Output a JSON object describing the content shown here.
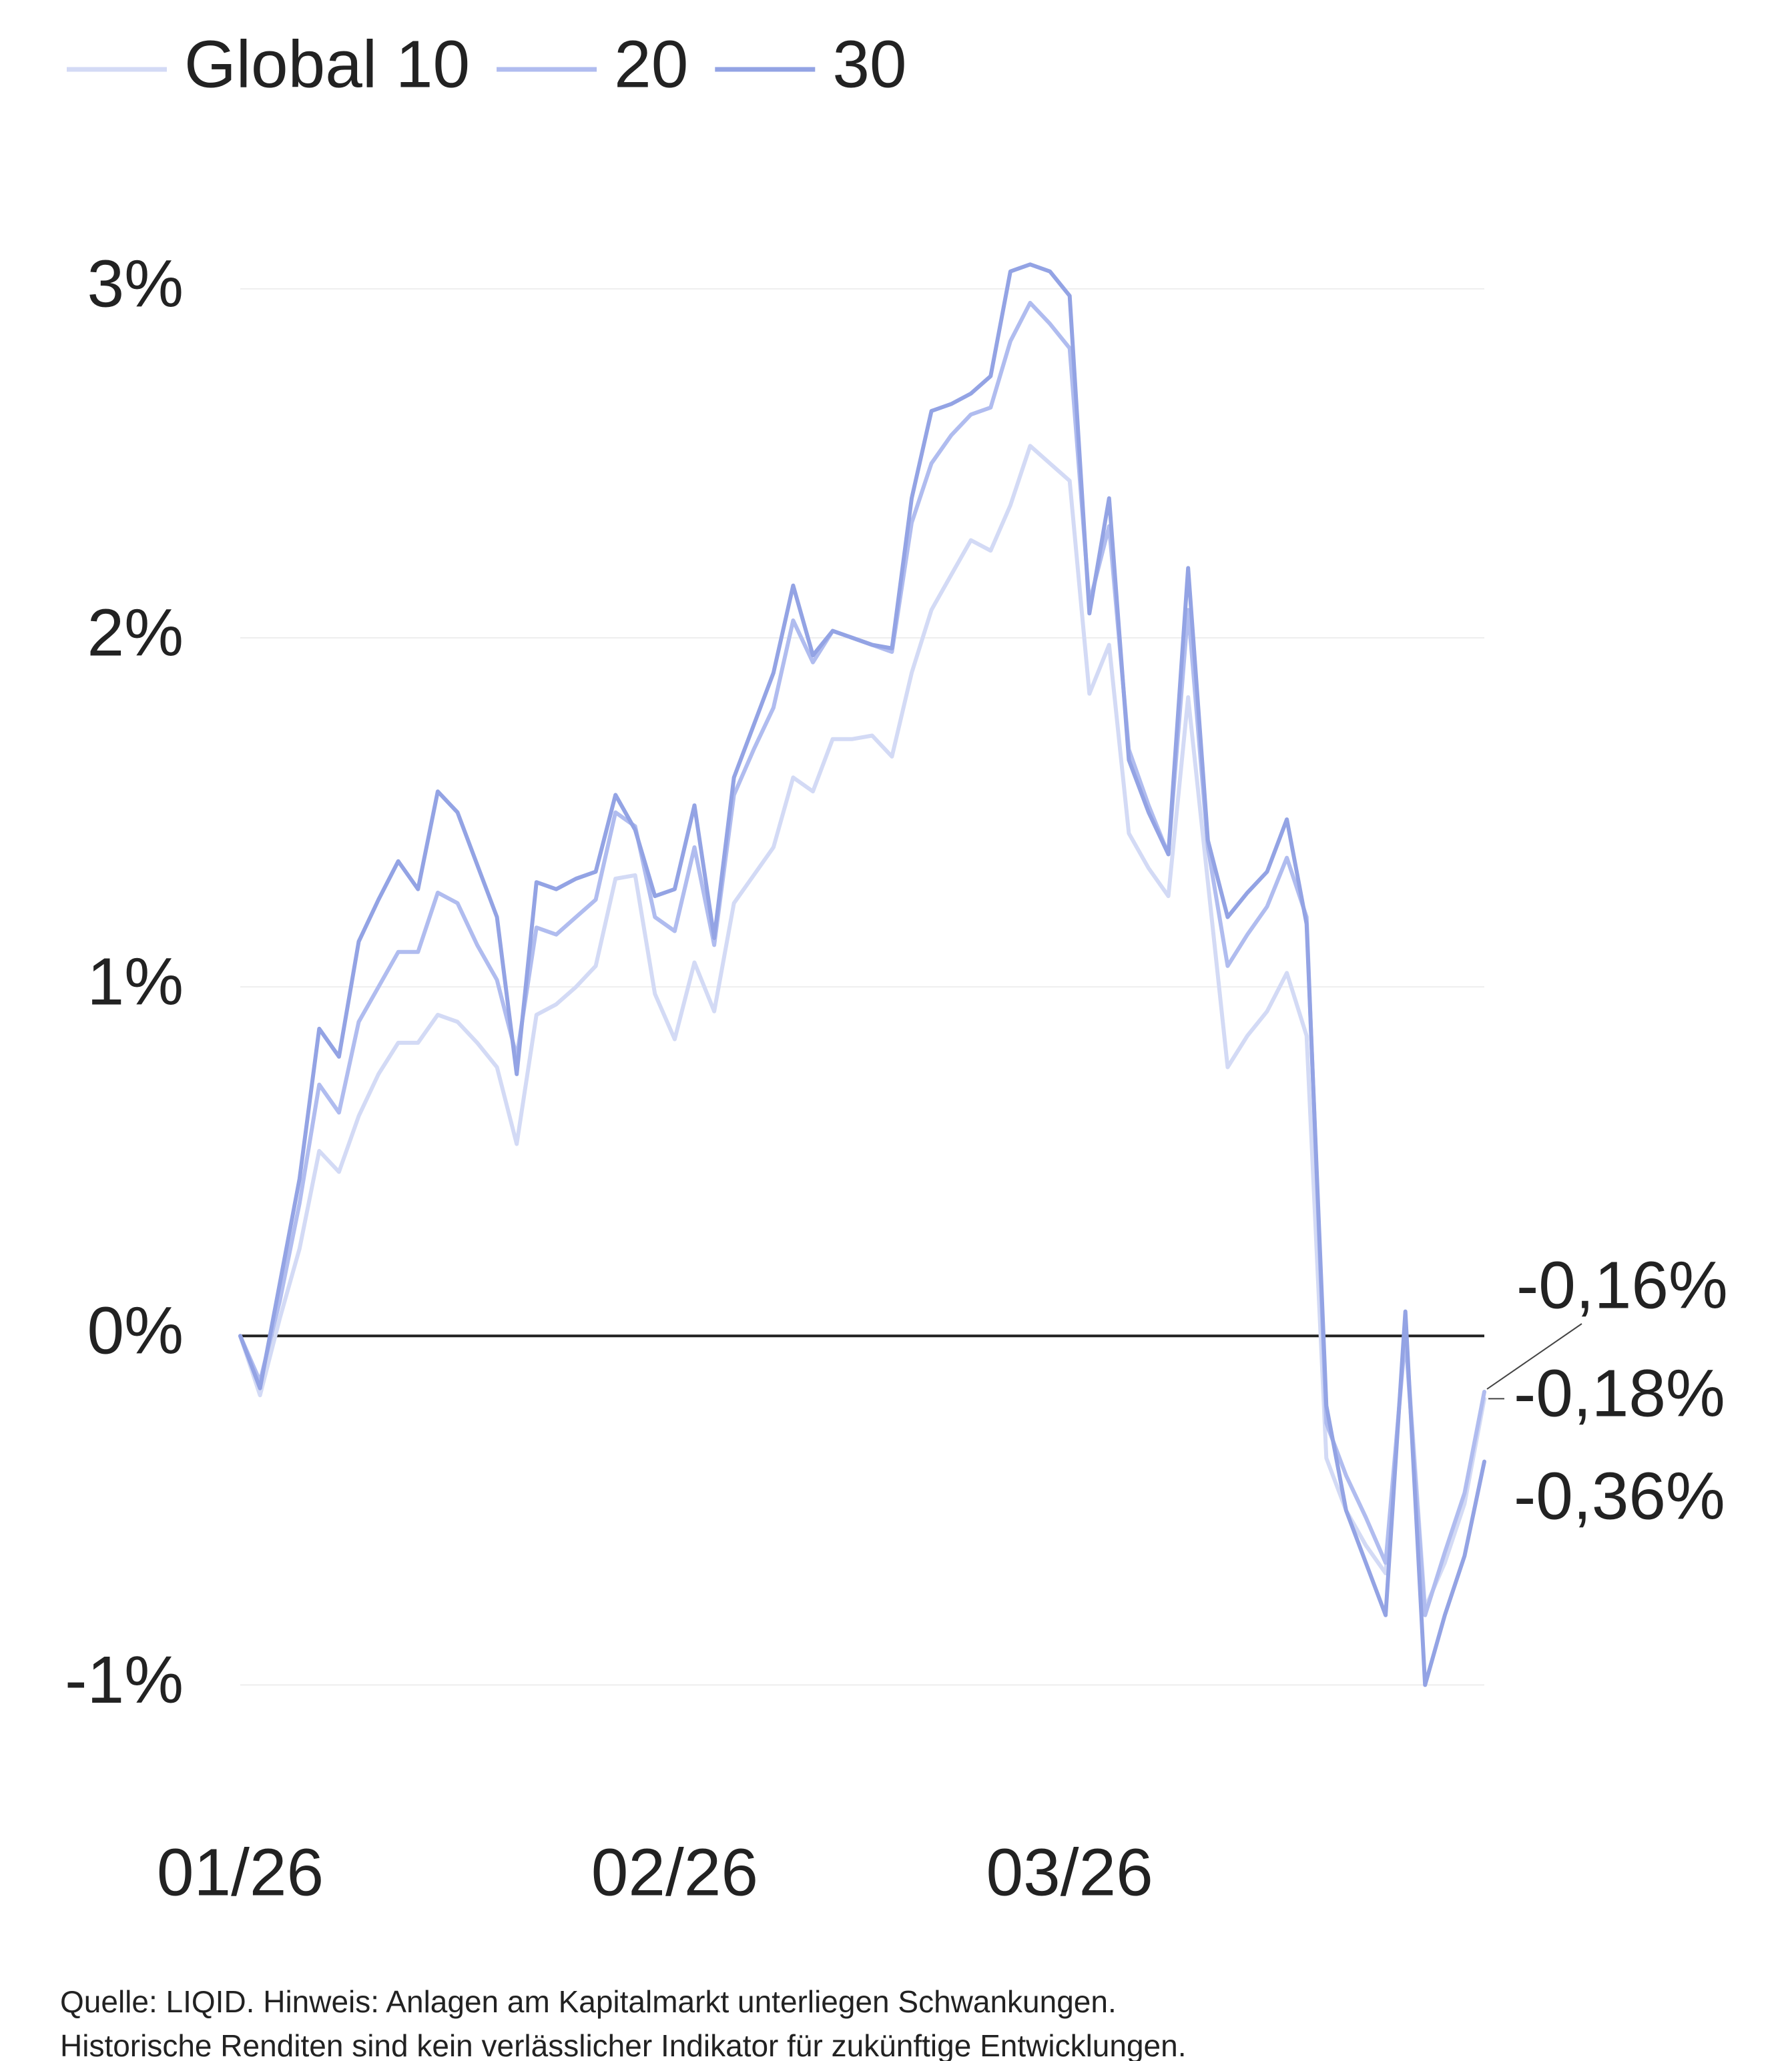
{
  "chart_data": {
    "type": "line",
    "categories": [
      "01/26",
      null,
      null,
      null,
      null,
      null,
      null,
      null,
      null,
      null,
      null,
      null,
      null,
      null,
      null,
      null,
      null,
      null,
      null,
      null,
      null,
      null,
      "02/26",
      null,
      null,
      null,
      null,
      null,
      null,
      null,
      null,
      null,
      null,
      null,
      null,
      null,
      null,
      null,
      null,
      null,
      null,
      null,
      "03/26",
      null,
      null,
      null,
      null,
      null,
      null,
      null,
      null,
      null,
      null,
      null,
      null,
      null,
      null,
      null,
      null,
      null,
      null,
      null,
      null,
      null
    ],
    "series": [
      {
        "name": "Global 10",
        "color": "#d3daf5",
        "values": [
          0,
          -0.17,
          0.05,
          0.25,
          0.53,
          0.47,
          0.63,
          0.75,
          0.84,
          0.84,
          0.92,
          0.9,
          0.84,
          0.77,
          0.55,
          0.92,
          0.95,
          1.0,
          1.06,
          1.31,
          1.32,
          0.98,
          0.85,
          1.07,
          0.93,
          1.24,
          1.32,
          1.4,
          1.6,
          1.56,
          1.71,
          1.71,
          1.72,
          1.66,
          1.9,
          2.08,
          2.18,
          2.28,
          2.25,
          2.38,
          2.55,
          2.5,
          2.45,
          1.84,
          1.98,
          1.44,
          1.34,
          1.26,
          1.83,
          1.3,
          0.77,
          0.86,
          0.93,
          1.04,
          0.86,
          -0.35,
          -0.5,
          -0.6,
          -0.68,
          0.02,
          -0.78,
          -0.65,
          -0.48,
          -0.18
        ],
        "value_labels": [
          null,
          null,
          null,
          null,
          null,
          null,
          null,
          null,
          null,
          null,
          null,
          null,
          null,
          null,
          null,
          null,
          null,
          null,
          null,
          null,
          null,
          null,
          null,
          null,
          null,
          null,
          null,
          null,
          null,
          null,
          null,
          null,
          null,
          null,
          null,
          null,
          null,
          null,
          null,
          null,
          null,
          null,
          null,
          null,
          null,
          null,
          null,
          null,
          null,
          null,
          null,
          null,
          null,
          null,
          null,
          null,
          null,
          null,
          null,
          null,
          null,
          null,
          null,
          "-0,18%"
        ]
      },
      {
        "name": "20",
        "color": "#b0bcef",
        "values": [
          0,
          -0.13,
          0.1,
          0.38,
          0.72,
          0.64,
          0.9,
          1.0,
          1.1,
          1.1,
          1.27,
          1.24,
          1.12,
          1.02,
          0.8,
          1.17,
          1.15,
          1.2,
          1.25,
          1.5,
          1.46,
          1.2,
          1.16,
          1.4,
          1.12,
          1.55,
          1.68,
          1.8,
          2.05,
          1.93,
          2.02,
          2.0,
          1.98,
          1.96,
          2.33,
          2.5,
          2.58,
          2.64,
          2.66,
          2.85,
          2.96,
          2.9,
          2.83,
          2.1,
          2.32,
          1.68,
          1.52,
          1.38,
          2.08,
          1.4,
          1.06,
          1.15,
          1.23,
          1.37,
          1.2,
          -0.25,
          -0.4,
          -0.52,
          -0.65,
          0.0,
          -0.8,
          -0.62,
          -0.45,
          -0.16
        ],
        "value_labels": [
          null,
          null,
          null,
          null,
          null,
          null,
          null,
          null,
          null,
          null,
          null,
          null,
          null,
          null,
          null,
          null,
          null,
          null,
          null,
          null,
          null,
          null,
          null,
          null,
          null,
          null,
          null,
          null,
          null,
          null,
          null,
          null,
          null,
          null,
          null,
          null,
          null,
          null,
          null,
          null,
          null,
          null,
          null,
          null,
          null,
          null,
          null,
          null,
          null,
          null,
          null,
          null,
          null,
          null,
          null,
          null,
          null,
          null,
          null,
          null,
          null,
          null,
          null,
          "-0,16%"
        ]
      },
      {
        "name": "30",
        "color": "#93a3e4",
        "values": [
          0,
          -0.15,
          0.15,
          0.45,
          0.88,
          0.8,
          1.13,
          1.25,
          1.36,
          1.28,
          1.56,
          1.5,
          1.35,
          1.2,
          0.75,
          1.3,
          1.28,
          1.31,
          1.33,
          1.55,
          1.45,
          1.26,
          1.28,
          1.52,
          1.14,
          1.6,
          1.75,
          1.9,
          2.15,
          1.95,
          2.02,
          2.0,
          1.98,
          1.97,
          2.4,
          2.65,
          2.67,
          2.7,
          2.75,
          3.05,
          3.07,
          3.05,
          2.98,
          2.07,
          2.4,
          1.65,
          1.5,
          1.38,
          2.2,
          1.42,
          1.2,
          1.27,
          1.33,
          1.48,
          1.18,
          -0.2,
          -0.5,
          -0.65,
          -0.8,
          0.07,
          -1.0,
          -0.8,
          -0.63,
          -0.36
        ],
        "value_labels": [
          null,
          null,
          null,
          null,
          null,
          null,
          null,
          null,
          null,
          null,
          null,
          null,
          null,
          null,
          null,
          null,
          null,
          null,
          null,
          null,
          null,
          null,
          null,
          null,
          null,
          null,
          null,
          null,
          null,
          null,
          null,
          null,
          null,
          null,
          null,
          null,
          null,
          null,
          null,
          null,
          null,
          null,
          null,
          null,
          null,
          null,
          null,
          null,
          null,
          null,
          null,
          null,
          null,
          null,
          null,
          null,
          null,
          null,
          null,
          null,
          null,
          null,
          null,
          "-0,36%"
        ]
      }
    ],
    "ylim": [
      -1.2,
      3.3
    ],
    "yticks": [
      {
        "value": 3,
        "label": "3%"
      },
      {
        "value": 2,
        "label": "2%"
      },
      {
        "value": 1,
        "label": "1%"
      },
      {
        "value": 0,
        "label": "0%"
      },
      {
        "value": -1,
        "label": "-1%"
      }
    ],
    "grid": true,
    "legend": "top-left",
    "footnote": [
      "Quelle: LIQID. Hinweis: Anlagen am Kapitalmarkt unterliegen Schwankungen.",
      "Historische Renditen sind kein verlässlicher Indikator für zukünftige Entwicklungen."
    ]
  }
}
